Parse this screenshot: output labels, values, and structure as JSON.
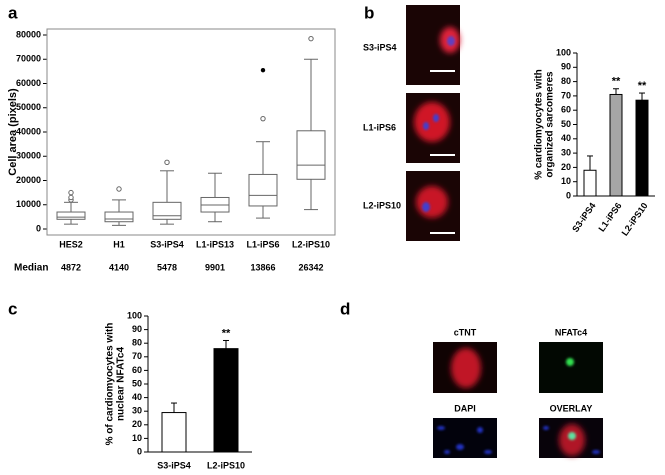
{
  "panels": [
    "a",
    "b",
    "c",
    "d"
  ],
  "chart_data": [
    {
      "type": "box",
      "ylabel": "Cell area (pixels)",
      "categories": [
        "HES2",
        "H1",
        "S3-iPS4",
        "L1-iPS13",
        "L1-iPS6",
        "L2-iPS10"
      ],
      "whisker_low": [
        2000,
        1500,
        2000,
        3000,
        4500,
        8000
      ],
      "q1": [
        4000,
        3000,
        4000,
        7000,
        9500,
        20500
      ],
      "median": [
        4872,
        4140,
        5478,
        9901,
        13866,
        26342
      ],
      "q3": [
        7000,
        7000,
        11000,
        13000,
        22500,
        40500
      ],
      "whisker_high": [
        11000,
        12000,
        24000,
        23000,
        36000,
        70000
      ],
      "outliers": [
        [
          12000,
          13000,
          15000
        ],
        [
          16500
        ],
        [
          27500
        ],
        [],
        [
          45500
        ],
        [
          78500
        ]
      ],
      "extremes": [
        [],
        [],
        [],
        [],
        [
          65500
        ],
        []
      ],
      "median_label": "Median",
      "ylim": [
        0,
        80000
      ],
      "yticks": [
        0,
        10000,
        20000,
        30000,
        40000,
        50000,
        60000,
        70000,
        80000
      ],
      "color": "#ffffff"
    },
    {
      "type": "bar",
      "ylabel": [
        "% cardiomyocytes with",
        "organized sarcomeres"
      ],
      "categories": [
        "S3-iPS4",
        "L1-iPS6",
        "L2-iPS10"
      ],
      "values": [
        18,
        71,
        67
      ],
      "error": [
        10,
        4,
        5
      ],
      "colors": [
        "#ffffff",
        "#a6a6a6",
        "#000000"
      ],
      "significance": [
        null,
        "**",
        "**"
      ],
      "ylim": [
        0,
        100
      ],
      "yticks": [
        0,
        10,
        20,
        30,
        40,
        50,
        60,
        70,
        80,
        90,
        100
      ],
      "rotated_labels": true
    },
    {
      "type": "bar",
      "ylabel": [
        "% of cardiomyocytes with",
        "nuclear NFATc4"
      ],
      "categories": [
        "S3-iPS4",
        "L2-iPS10"
      ],
      "values": [
        29,
        76
      ],
      "error": [
        7,
        6
      ],
      "colors": [
        "#ffffff",
        "#000000"
      ],
      "significance": [
        null,
        "**"
      ],
      "ylim": [
        0,
        100
      ],
      "yticks": [
        0,
        10,
        20,
        30,
        40,
        50,
        60,
        70,
        80,
        90,
        100
      ],
      "rotated_labels": false
    }
  ],
  "images_b": [
    "S3-iPS4",
    "L1-iPS6",
    "L2-iPS10"
  ],
  "images_d": [
    "cTNT",
    "NFATc4",
    "DAPI",
    "OVERLAY"
  ]
}
